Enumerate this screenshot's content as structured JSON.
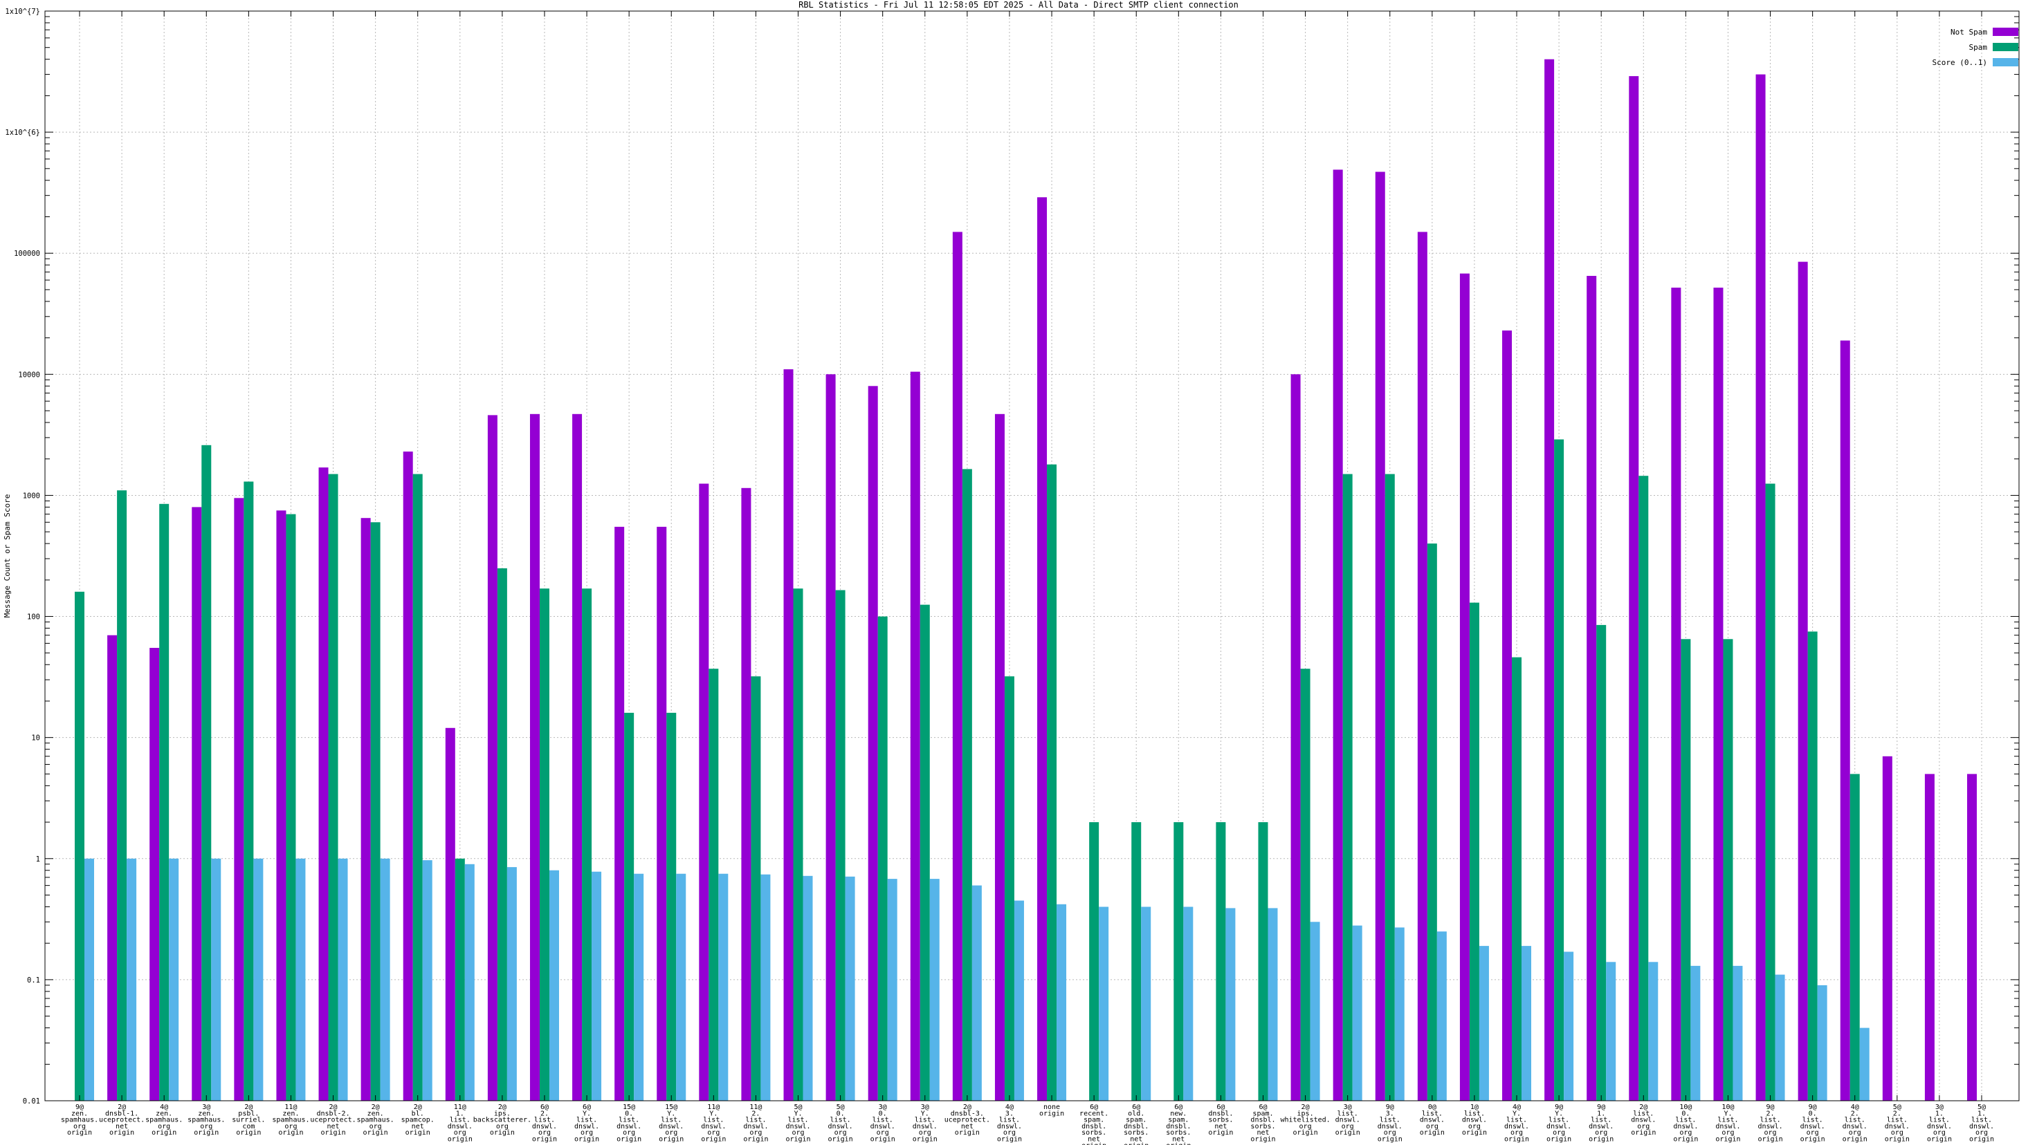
{
  "title": "RBL Statistics - Fri Jul 11 12:58:05 EDT 2025 - All Data - Direct SMTP client connection",
  "chart_data": {
    "type": "bar",
    "title": "RBL Statistics - Fri Jul 11 12:58:05 EDT 2025 - All Data - Direct SMTP client connection",
    "xlabel": "",
    "ylabel": "Message Count or Spam Score",
    "y_scale": "log10",
    "ylim": [
      0.01,
      10000000
    ],
    "y_tick_labels": [
      "1x10^{7}",
      "1x10^{6}",
      "100000",
      "10000",
      "1000",
      "100",
      "10",
      "1",
      "0.1",
      "0.01"
    ],
    "grid": true,
    "legend_position": "top-right",
    "background": "#ffffff",
    "grid_color": "#b8b8b8",
    "border_color": "#000000",
    "series": [
      {
        "name": "Not Spam",
        "color": "#9400d3",
        "values": [
          null,
          70,
          55,
          800,
          950,
          750,
          1700,
          650,
          2300,
          12,
          4600,
          4700,
          4700,
          550,
          550,
          1250,
          1150,
          11000,
          10000,
          8000,
          10500,
          150000,
          4700,
          290000,
          null,
          null,
          null,
          null,
          null,
          10000,
          490000,
          470000,
          150000,
          68000,
          23000,
          4000000,
          65000,
          2900000,
          52000,
          52000,
          3000000,
          85000,
          19000,
          7,
          5,
          5
        ]
      },
      {
        "name": "Spam",
        "color": "#009e73",
        "values": [
          160,
          1100,
          850,
          2600,
          1300,
          700,
          1500,
          600,
          1500,
          1,
          250,
          170,
          170,
          16,
          16,
          37,
          32,
          170,
          165,
          100,
          125,
          1650,
          32,
          1800,
          2,
          2,
          2,
          2,
          2,
          37,
          1500,
          1500,
          400,
          130,
          46,
          2900,
          85,
          1450,
          65,
          65,
          1250,
          75,
          5,
          null,
          null,
          null
        ]
      },
      {
        "name": "Score (0..1)",
        "color": "#56b4e9",
        "values": [
          1,
          1,
          1,
          1,
          1,
          1,
          1,
          1,
          0.97,
          0.9,
          0.85,
          0.8,
          0.78,
          0.75,
          0.75,
          0.75,
          0.74,
          0.72,
          0.71,
          0.68,
          0.68,
          0.6,
          0.45,
          0.42,
          0.4,
          0.4,
          0.4,
          0.39,
          0.39,
          0.3,
          0.28,
          0.27,
          0.25,
          0.19,
          0.19,
          0.17,
          0.14,
          0.14,
          0.13,
          0.13,
          0.11,
          0.09,
          0.04,
          null,
          null,
          null
        ]
      }
    ],
    "categories": [
      [
        "9@",
        "zen.",
        "spamhaus.",
        "org",
        "origin"
      ],
      [
        "2@",
        "dnsbl-1.",
        "uceprotect.",
        "net",
        "origin"
      ],
      [
        "4@",
        "zen.",
        "spamhaus.",
        "org",
        "origin"
      ],
      [
        "3@",
        "zen.",
        "spamhaus.",
        "org",
        "origin"
      ],
      [
        "2@",
        "psbl.",
        "surriel.",
        "com",
        "origin"
      ],
      [
        "11@",
        "zen.",
        "spamhaus.",
        "org",
        "origin"
      ],
      [
        "2@",
        "dnsbl-2.",
        "uceprotect.",
        "net",
        "origin"
      ],
      [
        "2@",
        "zen.",
        "spamhaus.",
        "org",
        "origin"
      ],
      [
        "2@",
        "bl.",
        "spamcop.",
        "net",
        "origin"
      ],
      [
        "11@",
        "1.",
        "list.",
        "dnswl.",
        "org",
        "origin"
      ],
      [
        "2@",
        "ips.",
        "backscatterer.",
        "org",
        "origin"
      ],
      [
        "6@",
        "2.",
        "list.",
        "dnswl.",
        "org",
        "origin"
      ],
      [
        "6@",
        "Y.",
        "list.",
        "dnswl.",
        "org",
        "origin"
      ],
      [
        "15@",
        "0.",
        "list.",
        "dnswl.",
        "org",
        "origin"
      ],
      [
        "15@",
        "Y.",
        "list.",
        "dnswl.",
        "org",
        "origin"
      ],
      [
        "11@",
        "Y.",
        "list.",
        "dnswl.",
        "org",
        "origin"
      ],
      [
        "11@",
        "2.",
        "list.",
        "dnswl.",
        "org",
        "origin"
      ],
      [
        "5@",
        "Y.",
        "list.",
        "dnswl.",
        "org",
        "origin"
      ],
      [
        "5@",
        "0.",
        "list.",
        "dnswl.",
        "org",
        "origin"
      ],
      [
        "3@",
        "0.",
        "list.",
        "dnswl.",
        "org",
        "origin"
      ],
      [
        "3@",
        "Y.",
        "list.",
        "dnswl.",
        "org",
        "origin"
      ],
      [
        "2@",
        "dnsbl-3.",
        "uceprotect.",
        "net",
        "origin"
      ],
      [
        "4@",
        "3.",
        "list.",
        "dnswl.",
        "org",
        "origin"
      ],
      [
        "none",
        "origin"
      ],
      [
        "6@",
        "recent.",
        "spam.",
        "dnsbl.",
        "sorbs.",
        "net",
        "origin"
      ],
      [
        "6@",
        "old.",
        "spam.",
        "dnsbl.",
        "sorbs.",
        "net",
        "origin"
      ],
      [
        "6@",
        "new.",
        "spam.",
        "dnsbl.",
        "sorbs.",
        "net",
        "origin"
      ],
      [
        "6@",
        "dnsbl.",
        "sorbs.",
        "net",
        "origin"
      ],
      [
        "6@",
        "spam.",
        "dnsbl.",
        "sorbs.",
        "net",
        "origin"
      ],
      [
        "2@",
        "ips.",
        "whitelisted.",
        "org",
        "origin"
      ],
      [
        "3@",
        "list.",
        "dnswl.",
        "org",
        "origin"
      ],
      [
        "9@",
        "3.",
        "list.",
        "dnswl.",
        "org",
        "origin"
      ],
      [
        "0@",
        "list.",
        "dnswl.",
        "org",
        "origin"
      ],
      [
        "1@",
        "list.",
        "dnswl.",
        "org",
        "origin"
      ],
      [
        "4@",
        "Y.",
        "list.",
        "dnswl.",
        "org",
        "origin"
      ],
      [
        "9@",
        "Y.",
        "list.",
        "dnswl.",
        "org",
        "origin"
      ],
      [
        "9@",
        "1.",
        "list.",
        "dnswl.",
        "org",
        "origin"
      ],
      [
        "2@",
        "list.",
        "dnswl.",
        "org",
        "origin"
      ],
      [
        "10@",
        "0.",
        "list.",
        "dnswl.",
        "org",
        "origin"
      ],
      [
        "10@",
        "Y.",
        "list.",
        "dnswl.",
        "org",
        "origin"
      ],
      [
        "9@",
        "2.",
        "list.",
        "dnswl.",
        "org",
        "origin"
      ],
      [
        "9@",
        "0.",
        "list.",
        "dnswl.",
        "org",
        "origin"
      ],
      [
        "4@",
        "2.",
        "list.",
        "dnswl.",
        "org",
        "origin"
      ],
      [
        "5@",
        "2.",
        "list.",
        "dnswl.",
        "org",
        "origin"
      ],
      [
        "3@",
        "1.",
        "list.",
        "dnswl.",
        "org",
        "origin"
      ],
      [
        "5@",
        "1.",
        "list.",
        "dnswl.",
        "org",
        "origin"
      ]
    ]
  }
}
